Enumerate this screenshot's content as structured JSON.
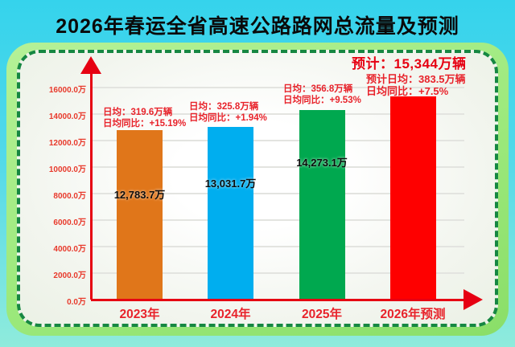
{
  "header": {
    "title": "2026年春运全省高速公路路网总流量及预测"
  },
  "chart_data": {
    "type": "bar",
    "title": "2026年春运全省高速公路路网总流量及预测",
    "categories": [
      "2023年",
      "2024年",
      "2025年",
      "2026年预测"
    ],
    "values": [
      12783.7,
      13031.7,
      14273.1,
      15344
    ],
    "bar_value_labels": [
      "12,783.7万",
      "13,031.7万",
      "14,273.1万",
      ""
    ],
    "bar_colors": [
      "#e0761a",
      "#00aeef",
      "#00a84f",
      "#fe0000"
    ],
    "xlabel": "",
    "ylabel": "",
    "ylim": [
      0,
      16000
    ],
    "y_tick_step": 2000,
    "y_tick_labels": [
      "0.0万",
      "2000.0万",
      "4000.0万",
      "6000.0万",
      "8000.0万",
      "10000.0万",
      "12000.0万",
      "14000.0万",
      "16000.0万"
    ],
    "grid": true,
    "legend": false,
    "annotations": [
      {
        "category": "2023年",
        "lines": [
          "日均：319.6万辆",
          "日均同比：+15.19%"
        ]
      },
      {
        "category": "2024年",
        "lines": [
          "日均：325.8万辆",
          "日均同比：+1.94%"
        ]
      },
      {
        "category": "2025年",
        "lines": [
          "日均：356.8万辆",
          "日均同比：+9.53%"
        ]
      },
      {
        "category": "2026年预测",
        "headline": "预计：15,344万辆",
        "lines": [
          "预计日均：383.5万辆",
          "日均同比：+7.5%"
        ]
      }
    ]
  },
  "colors": {
    "background_top": "#35d3ec",
    "background_bottom": "#8febdc",
    "panel_green": "#9ce97c",
    "panel_face": "#f4f6f1",
    "dashed_border": "#168742",
    "axis_red": "#e60012",
    "label_red": "#e8232b",
    "value_label_text": "#0d0d0d",
    "gridline": "#e3e4e0",
    "title_text": "#0a0a0a"
  }
}
